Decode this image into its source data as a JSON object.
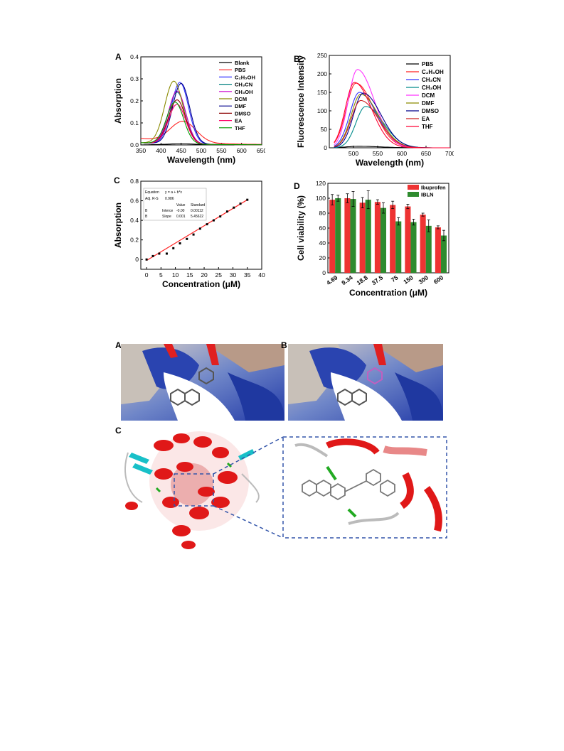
{
  "panel_labels": {
    "fig1": [
      "A",
      "B",
      "C",
      "D"
    ],
    "fig2": [
      "A",
      "B",
      "C"
    ]
  },
  "chart_data": [
    {
      "id": "A",
      "type": "line",
      "xlabel": "Wavelength (nm)",
      "ylabel": "Absorption",
      "xlim": [
        350,
        650
      ],
      "ylim": [
        0,
        0.4
      ],
      "xticks": [
        350,
        400,
        450,
        500,
        550,
        600,
        650
      ],
      "yticks": [
        0.0,
        0.1,
        0.2,
        0.3,
        0.4
      ],
      "legend_position": "top-right",
      "series": [
        {
          "name": "Blank",
          "color": "#000000",
          "peak_x": 450,
          "peak_y": 0.005,
          "width": 60,
          "base": 0.0
        },
        {
          "name": "PBS",
          "color": "#ff2020",
          "peak_x": 455,
          "peak_y": 0.095,
          "width": 45,
          "base": 0.03
        },
        {
          "name": "C2H5OH",
          "color": "#3030ff",
          "peak_x": 447,
          "peak_y": 0.28,
          "width": 30,
          "base": 0.01
        },
        {
          "name": "CH3CN",
          "color": "#008080",
          "peak_x": 440,
          "peak_y": 0.235,
          "width": 30,
          "base": 0.01
        },
        {
          "name": "CH3OH",
          "color": "#cc00cc",
          "peak_x": 440,
          "peak_y": 0.24,
          "width": 30,
          "base": 0.01
        },
        {
          "name": "DCM",
          "color": "#8a8a00",
          "peak_x": 432,
          "peak_y": 0.285,
          "width": 32,
          "base": 0.01
        },
        {
          "name": "DMF",
          "color": "#00008b",
          "peak_x": 450,
          "peak_y": 0.275,
          "width": 30,
          "base": 0.01
        },
        {
          "name": "DMSO",
          "color": "#8b0000",
          "peak_x": 440,
          "peak_y": 0.2,
          "width": 30,
          "base": 0.01
        },
        {
          "name": "EA",
          "color": "#ff0066",
          "peak_x": 440,
          "peak_y": 0.18,
          "width": 30,
          "base": 0.01
        },
        {
          "name": "THF",
          "color": "#009900",
          "peak_x": 435,
          "peak_y": 0.19,
          "width": 30,
          "base": 0.01
        }
      ],
      "legend_labels": [
        "Blank",
        "PBS",
        "C₂H₅OH",
        "CH₃CN",
        "CH₃OH",
        "DCM",
        "DMF",
        "DMSO",
        "EA",
        "THF"
      ]
    },
    {
      "id": "B",
      "type": "line",
      "xlabel": "Wavelength (nm)",
      "ylabel": "Fluorescence Intensity",
      "xlim": [
        450,
        700
      ],
      "ylim": [
        0,
        250
      ],
      "xticks": [
        500,
        550,
        600,
        650,
        700
      ],
      "yticks": [
        0,
        50,
        100,
        150,
        200,
        250
      ],
      "legend_position": "top-right",
      "series": [
        {
          "name": "PBS",
          "color": "#000000",
          "peak_x": 510,
          "peak_y": 4,
          "width": 50
        },
        {
          "name": "C2H5OH",
          "color": "#ff2020",
          "peak_x": 505,
          "peak_y": 175,
          "width": 40
        },
        {
          "name": "CH3CN",
          "color": "#3030ff",
          "peak_x": 512,
          "peak_y": 150,
          "width": 40
        },
        {
          "name": "CH3OH",
          "color": "#008b8b",
          "peak_x": 525,
          "peak_y": 112,
          "width": 40
        },
        {
          "name": "DCM",
          "color": "#ff33ff",
          "peak_x": 508,
          "peak_y": 212,
          "width": 38
        },
        {
          "name": "DMF",
          "color": "#8a8a00",
          "peak_x": 515,
          "peak_y": 145,
          "width": 40
        },
        {
          "name": "DMSO",
          "color": "#00008b",
          "peak_x": 520,
          "peak_y": 148,
          "width": 40
        },
        {
          "name": "EA",
          "color": "#cc2020",
          "peak_x": 515,
          "peak_y": 128,
          "width": 40
        },
        {
          "name": "THF",
          "color": "#ff0033",
          "peak_x": 502,
          "peak_y": 177,
          "width": 38
        }
      ],
      "legend_labels": [
        "PBS",
        "C₂H₅OH",
        "CH₃CN",
        "CH₃OH",
        "DCM",
        "DMF",
        "DMSO",
        "EA",
        "THF"
      ]
    },
    {
      "id": "C",
      "type": "scatter",
      "xlabel": "Concentration (μM)",
      "ylabel": "Absorption",
      "xlim": [
        -2,
        40
      ],
      "ylim": [
        -0.1,
        0.8
      ],
      "xticks": [
        0,
        5,
        10,
        15,
        20,
        25,
        30,
        35,
        40
      ],
      "yticks": [
        0,
        0.2,
        0.4,
        0.6,
        0.8
      ],
      "points": {
        "x": [
          0,
          2.2,
          4.4,
          7,
          9.3,
          11.6,
          14,
          16.3,
          18.6,
          21,
          23.3,
          25.6,
          28,
          30.3,
          32.6,
          35
        ],
        "y": [
          0.0,
          0.035,
          0.06,
          0.06,
          0.115,
          0.165,
          0.21,
          0.255,
          0.315,
          0.36,
          0.4,
          0.44,
          0.49,
          0.53,
          0.57,
          0.61
        ]
      },
      "fit": {
        "x": [
          0,
          35
        ],
        "y": [
          -0.01,
          0.61
        ],
        "color": "#ff2020"
      },
      "table": {
        "rows": [
          [
            "Equation",
            "y = a + b*x",
            ""
          ],
          [
            "Adj. R-S",
            "0.986",
            ""
          ],
          [
            "",
            "Value",
            "Standard"
          ],
          [
            "B",
            "Interce",
            "-0.00",
            "0.00112"
          ],
          [
            "B",
            "Slope",
            "0.001",
            "5.45622"
          ]
        ]
      }
    },
    {
      "id": "D",
      "type": "bar",
      "xlabel": "Concentration (μM)",
      "ylabel": "Cell viability (%)",
      "ylim": [
        0,
        120
      ],
      "yticks": [
        0,
        20,
        40,
        60,
        80,
        100,
        120
      ],
      "categories": [
        "4.69",
        "9.34",
        "18.8",
        "37.5",
        "75",
        "150",
        "300",
        "600"
      ],
      "legend_position": "top-right",
      "series": [
        {
          "name": "Ibuprofen",
          "color": "#ee3333",
          "values": [
            98,
            100,
            94,
            95,
            91,
            89,
            78,
            61
          ],
          "errors": [
            7,
            6,
            7,
            3,
            5,
            3,
            2,
            2
          ]
        },
        {
          "name": "IBLN",
          "color": "#2e8b2e",
          "values": [
            100,
            99,
            98,
            87,
            69,
            68,
            63,
            50
          ],
          "errors": [
            4,
            10,
            12,
            7,
            5,
            4,
            8,
            7
          ]
        }
      ]
    }
  ]
}
